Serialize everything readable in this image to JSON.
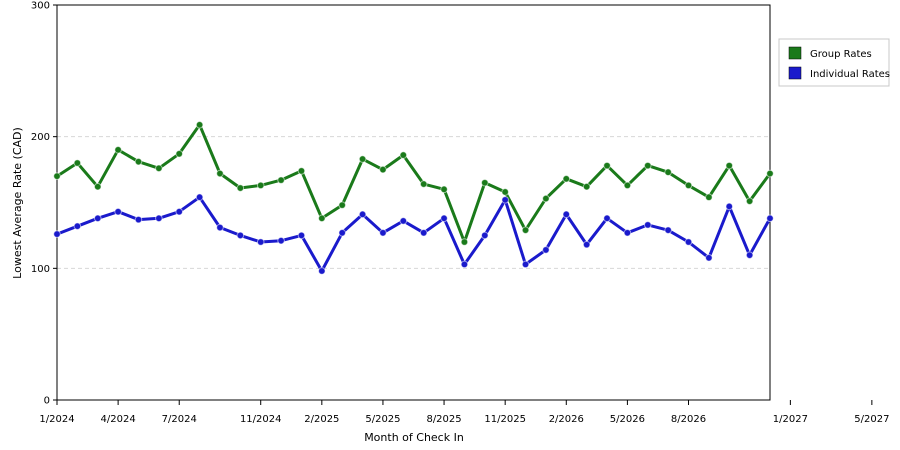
{
  "chart_data": {
    "type": "line",
    "xlabel": "Month of Check In",
    "ylabel": "Lowest Average Rate (CAD)",
    "ylim": [
      0,
      300
    ],
    "yticks": [
      "0",
      "100",
      "200",
      "300"
    ],
    "grid": "horizontal-dashed",
    "legend_position": "right",
    "x_tick_labels": [
      "1/2024",
      "4/2024",
      "7/2024",
      "11/2024",
      "2/2025",
      "5/2025",
      "8/2025",
      "11/2025",
      "2/2026",
      "5/2026",
      "8/2026",
      "1/2027",
      "5/2027"
    ],
    "series": [
      {
        "name": "Group Rates",
        "color": "#1a7a1a",
        "values": [
          170,
          180,
          162,
          190,
          181,
          176,
          187,
          209,
          172,
          161,
          163,
          167,
          174,
          138,
          148,
          183,
          175,
          186,
          164,
          160,
          120,
          165,
          158,
          129,
          153,
          168,
          162,
          178,
          163,
          178,
          173,
          163,
          154,
          178,
          151,
          172
        ]
      },
      {
        "name": "Individual Rates",
        "color": "#1a1acc",
        "values": [
          126,
          132,
          138,
          143,
          137,
          138,
          143,
          154,
          131,
          125,
          120,
          121,
          125,
          98,
          127,
          141,
          127,
          136,
          127,
          138,
          103,
          125,
          152,
          103,
          114,
          141,
          118,
          138,
          127,
          133,
          129,
          120,
          108,
          147,
          110,
          138
        ]
      }
    ]
  }
}
